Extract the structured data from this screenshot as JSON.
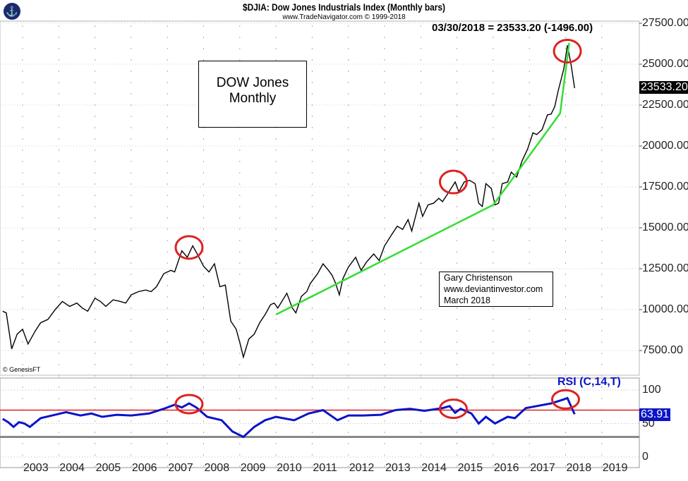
{
  "header": {
    "title": "$DJIA:  Dow Jones Industrials Index  (Monthly bars)",
    "subtitle": "www.TradeNavigator.com © 1999-2018",
    "readout": "03/30/2018 = 23533.20 (-1496.00)",
    "copyright": "© GenesisFT"
  },
  "annotations": {
    "label_line1": "DOW Jones",
    "label_line2": "Monthly",
    "author_line1": "Gary Christenson",
    "author_line2": "www.deviantinvestor.com",
    "author_line3": "March 2018"
  },
  "colors": {
    "price": "#000000",
    "trend": "#33dd33",
    "circle": "#dd2222",
    "rsi": "#0a14c8",
    "rsi_ref": "#dd2222",
    "rsi_floor": "#888888"
  },
  "chart_data": [
    {
      "type": "line",
      "title": "$DJIA Monthly",
      "ylim": [
        6500,
        28000
      ],
      "yticks": [
        "27500.00",
        "25000.00",
        "22500.00",
        "20000.00",
        "17500.00",
        "15000.00",
        "12500.00",
        "10000.00",
        "7500.00"
      ],
      "ytick_values": [
        27500,
        25000,
        22500,
        20000,
        17500,
        15000,
        12500,
        10000,
        7500
      ],
      "last_value_label": "23533.20",
      "last_value": 23533.2,
      "series": [
        {
          "name": "DJIA",
          "points": [
            [
              2002.45,
              9900
            ],
            [
              2002.55,
              9800
            ],
            [
              2002.7,
              7600
            ],
            [
              2002.85,
              8500
            ],
            [
              2003.0,
              8800
            ],
            [
              2003.15,
              7900
            ],
            [
              2003.35,
              8700
            ],
            [
              2003.5,
              9200
            ],
            [
              2003.7,
              9400
            ],
            [
              2003.9,
              10000
            ],
            [
              2004.1,
              10500
            ],
            [
              2004.3,
              10200
            ],
            [
              2004.5,
              10400
            ],
            [
              2004.65,
              10100
            ],
            [
              2004.8,
              9900
            ],
            [
              2005.0,
              10700
            ],
            [
              2005.15,
              10500
            ],
            [
              2005.3,
              10200
            ],
            [
              2005.5,
              10600
            ],
            [
              2005.7,
              10500
            ],
            [
              2005.85,
              10400
            ],
            [
              2006.0,
              10900
            ],
            [
              2006.2,
              11100
            ],
            [
              2006.4,
              11200
            ],
            [
              2006.55,
              11100
            ],
            [
              2006.7,
              11400
            ],
            [
              2006.9,
              12200
            ],
            [
              2007.1,
              12400
            ],
            [
              2007.2,
              12300
            ],
            [
              2007.4,
              13600
            ],
            [
              2007.55,
              13200
            ],
            [
              2007.7,
              13900
            ],
            [
              2007.85,
              13300
            ],
            [
              2008.0,
              12650
            ],
            [
              2008.15,
              12300
            ],
            [
              2008.3,
              12800
            ],
            [
              2008.45,
              11400
            ],
            [
              2008.6,
              11500
            ],
            [
              2008.75,
              9300
            ],
            [
              2008.9,
              8800
            ],
            [
              2009.0,
              8000
            ],
            [
              2009.1,
              7100
            ],
            [
              2009.25,
              8200
            ],
            [
              2009.4,
              8500
            ],
            [
              2009.55,
              9200
            ],
            [
              2009.7,
              9700
            ],
            [
              2009.85,
              10300
            ],
            [
              2009.95,
              10400
            ],
            [
              2010.05,
              10100
            ],
            [
              2010.3,
              11000
            ],
            [
              2010.45,
              10100
            ],
            [
              2010.55,
              9800
            ],
            [
              2010.7,
              10800
            ],
            [
              2010.85,
              11100
            ],
            [
              2010.95,
              11600
            ],
            [
              2011.15,
              12200
            ],
            [
              2011.3,
              12800
            ],
            [
              2011.45,
              12400
            ],
            [
              2011.55,
              12100
            ],
            [
              2011.65,
              11600
            ],
            [
              2011.75,
              10900
            ],
            [
              2011.85,
              11900
            ],
            [
              2012.0,
              12600
            ],
            [
              2012.2,
              13200
            ],
            [
              2012.35,
              12400
            ],
            [
              2012.5,
              12900
            ],
            [
              2012.7,
              13400
            ],
            [
              2012.85,
              13000
            ],
            [
              2013.0,
              13900
            ],
            [
              2013.2,
              14600
            ],
            [
              2013.35,
              15100
            ],
            [
              2013.5,
              14900
            ],
            [
              2013.65,
              15500
            ],
            [
              2013.75,
              14800
            ],
            [
              2013.95,
              16500
            ],
            [
              2014.05,
              15700
            ],
            [
              2014.2,
              16400
            ],
            [
              2014.35,
              16500
            ],
            [
              2014.5,
              16800
            ],
            [
              2014.6,
              16600
            ],
            [
              2014.75,
              17100
            ],
            [
              2014.95,
              17800
            ],
            [
              2015.05,
              17200
            ],
            [
              2015.2,
              17800
            ],
            [
              2015.35,
              17900
            ],
            [
              2015.5,
              17700
            ],
            [
              2015.6,
              16500
            ],
            [
              2015.7,
              16300
            ],
            [
              2015.8,
              17700
            ],
            [
              2015.95,
              17400
            ],
            [
              2016.05,
              16400
            ],
            [
              2016.15,
              16500
            ],
            [
              2016.25,
              17700
            ],
            [
              2016.4,
              17800
            ],
            [
              2016.5,
              18400
            ],
            [
              2016.65,
              18100
            ],
            [
              2016.8,
              19100
            ],
            [
              2016.95,
              19800
            ],
            [
              2017.1,
              20800
            ],
            [
              2017.2,
              20700
            ],
            [
              2017.35,
              21000
            ],
            [
              2017.5,
              21900
            ],
            [
              2017.6,
              21950
            ],
            [
              2017.7,
              22400
            ],
            [
              2017.8,
              23400
            ],
            [
              2017.95,
              24700
            ],
            [
              2018.05,
              26150
            ],
            [
              2018.15,
              25000
            ],
            [
              2018.25,
              23533
            ]
          ]
        }
      ],
      "trendlines": [
        [
          [
            2010.0,
            9700
          ],
          [
            2016.0,
            16400
          ],
          [
            2016.6,
            18200
          ],
          [
            2017.85,
            22000
          ],
          [
            2018.1,
            26300
          ]
        ]
      ],
      "highlights": [
        [
          2007.6,
          13800
        ],
        [
          2014.9,
          17800
        ],
        [
          2018.05,
          25800
        ]
      ]
    },
    {
      "type": "line",
      "title": "RSI (C,14,T)",
      "ylim": [
        -5,
        115
      ],
      "yticks": [
        "100",
        "50",
        "0"
      ],
      "ytick_values": [
        100,
        50,
        0
      ],
      "reference_lines": [
        70,
        30
      ],
      "last_value_label": "63.91",
      "last_value": 63.91,
      "series": [
        {
          "name": "RSI",
          "points": [
            [
              2002.45,
              57
            ],
            [
              2002.6,
              52
            ],
            [
              2002.75,
              45
            ],
            [
              2002.9,
              52
            ],
            [
              2003.05,
              50
            ],
            [
              2003.2,
              45
            ],
            [
              2003.5,
              58
            ],
            [
              2003.9,
              63
            ],
            [
              2004.2,
              67
            ],
            [
              2004.6,
              62
            ],
            [
              2004.9,
              65
            ],
            [
              2005.2,
              60
            ],
            [
              2005.6,
              63
            ],
            [
              2006.0,
              62
            ],
            [
              2006.5,
              65
            ],
            [
              2006.9,
              72
            ],
            [
              2007.2,
              78
            ],
            [
              2007.4,
              74
            ],
            [
              2007.6,
              80
            ],
            [
              2007.8,
              74
            ],
            [
              2008.1,
              60
            ],
            [
              2008.5,
              55
            ],
            [
              2008.8,
              38
            ],
            [
              2009.1,
              30
            ],
            [
              2009.4,
              45
            ],
            [
              2009.7,
              55
            ],
            [
              2010.0,
              60
            ],
            [
              2010.5,
              55
            ],
            [
              2010.9,
              65
            ],
            [
              2011.3,
              70
            ],
            [
              2011.7,
              55
            ],
            [
              2012.0,
              62
            ],
            [
              2012.4,
              62
            ],
            [
              2012.9,
              63
            ],
            [
              2013.3,
              70
            ],
            [
              2013.7,
              72
            ],
            [
              2014.1,
              69
            ],
            [
              2014.6,
              73
            ],
            [
              2014.8,
              76
            ],
            [
              2014.95,
              66
            ],
            [
              2015.1,
              72
            ],
            [
              2015.4,
              65
            ],
            [
              2015.6,
              50
            ],
            [
              2015.8,
              60
            ],
            [
              2016.05,
              50
            ],
            [
              2016.4,
              60
            ],
            [
              2016.6,
              58
            ],
            [
              2016.9,
              73
            ],
            [
              2017.2,
              76
            ],
            [
              2017.6,
              80
            ],
            [
              2017.95,
              86
            ],
            [
              2018.05,
              88
            ],
            [
              2018.25,
              63.91
            ]
          ]
        }
      ],
      "highlights": [
        [
          2007.6,
          79
        ],
        [
          2014.9,
          72
        ],
        [
          2018.0,
          86
        ]
      ]
    }
  ],
  "x_axis": {
    "labels": [
      "2003",
      "2004",
      "2005",
      "2006",
      "2007",
      "2008",
      "2009",
      "2010",
      "2011",
      "2012",
      "2013",
      "2014",
      "2015",
      "2016",
      "2017",
      "2018",
      "2019"
    ]
  }
}
